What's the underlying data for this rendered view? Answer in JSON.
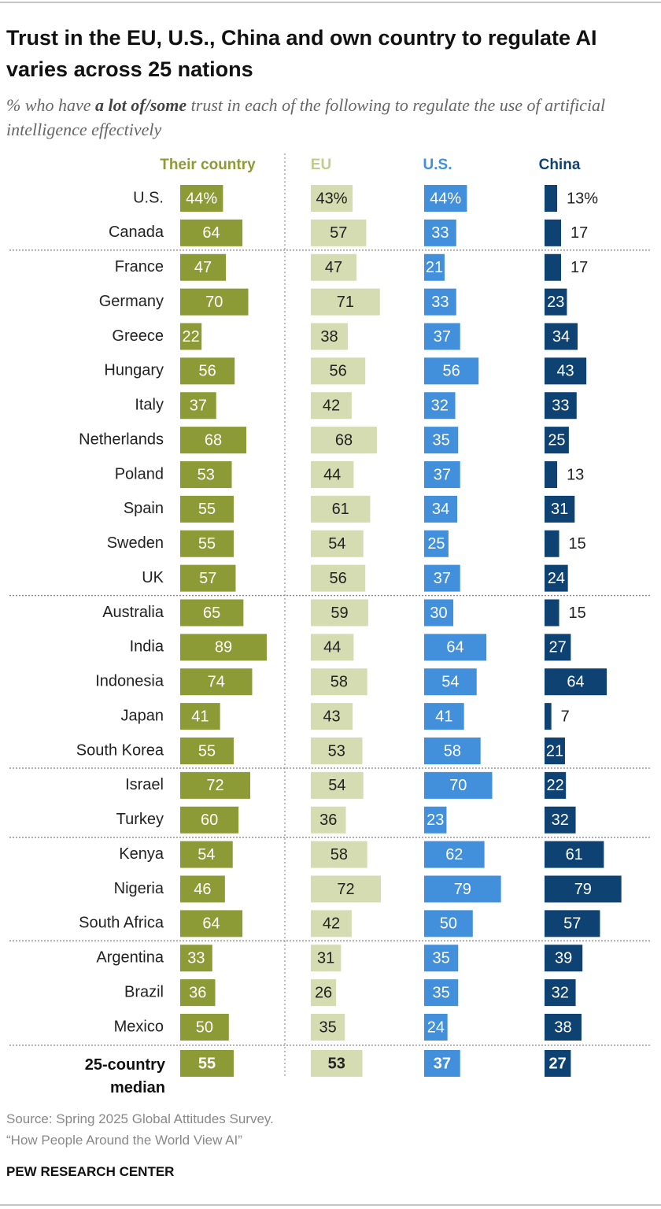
{
  "chart_data": {
    "type": "bar",
    "title": "Trust in the EU, U.S., China and own country to regulate AI varies across 25 nations",
    "subtitle": [
      "% who have ",
      "a lot of/some",
      " trust in each of the following to regulate the use of artificial intelligence effectively"
    ],
    "categories": [
      "U.S.",
      "Canada",
      "France",
      "Germany",
      "Greece",
      "Hungary",
      "Italy",
      "Netherlands",
      "Poland",
      "Spain",
      "Sweden",
      "UK",
      "Australia",
      "India",
      "Indonesia",
      "Japan",
      "South Korea",
      "Israel",
      "Turkey",
      "Kenya",
      "Nigeria",
      "South Africa",
      "Argentina",
      "Brazil",
      "Mexico",
      "25-country median"
    ],
    "series": [
      {
        "name": "Their country",
        "color": "#8c9b35",
        "label_color": "#ffffff",
        "values": [
          44,
          64,
          47,
          70,
          22,
          56,
          37,
          68,
          53,
          55,
          55,
          57,
          65,
          89,
          74,
          41,
          55,
          72,
          60,
          54,
          46,
          64,
          33,
          36,
          50,
          55
        ],
        "value_labels": [
          "44%",
          "64",
          "47",
          "70",
          "22",
          "56",
          "37",
          "68",
          "53",
          "55",
          "55",
          "57",
          "65",
          "89",
          "74",
          "41",
          "55",
          "72",
          "60",
          "54",
          "46",
          "64",
          "33",
          "36",
          "50",
          "55"
        ]
      },
      {
        "name": "EU",
        "color": "#d5dcb1",
        "label_color": "#222222",
        "values": [
          43,
          57,
          47,
          71,
          38,
          56,
          42,
          68,
          44,
          61,
          54,
          56,
          59,
          44,
          58,
          43,
          53,
          54,
          36,
          58,
          72,
          42,
          31,
          26,
          35,
          53
        ],
        "value_labels": [
          "43%",
          "57",
          "47",
          "71",
          "38",
          "56",
          "42",
          "68",
          "44",
          "61",
          "54",
          "56",
          "59",
          "44",
          "58",
          "43",
          "53",
          "54",
          "36",
          "58",
          "72",
          "42",
          "31",
          "26",
          "35",
          "53"
        ]
      },
      {
        "name": "U.S.",
        "color": "#4290dc",
        "label_color": "#ffffff",
        "values": [
          44,
          33,
          21,
          33,
          37,
          56,
          32,
          35,
          37,
          34,
          25,
          37,
          30,
          64,
          54,
          41,
          58,
          70,
          23,
          62,
          79,
          50,
          35,
          35,
          24,
          37
        ],
        "value_labels": [
          "44%",
          "33",
          "21",
          "33",
          "37",
          "56",
          "32",
          "35",
          "37",
          "34",
          "25",
          "37",
          "30",
          "64",
          "54",
          "41",
          "58",
          "70",
          "23",
          "62",
          "79",
          "50",
          "35",
          "35",
          "24",
          "37"
        ]
      },
      {
        "name": "China",
        "color": "#0d4273",
        "label_color": "#ffffff",
        "values": [
          13,
          17,
          17,
          23,
          34,
          43,
          33,
          25,
          13,
          31,
          15,
          24,
          15,
          27,
          64,
          7,
          21,
          22,
          32,
          61,
          79,
          57,
          39,
          32,
          38,
          27
        ],
        "value_labels": [
          "13%",
          "17",
          "17",
          "23",
          "34",
          "43",
          "33",
          "25",
          "13",
          "31",
          "15",
          "24",
          "15",
          "27",
          "64",
          "7",
          "21",
          "22",
          "32",
          "61",
          "79",
          "57",
          "39",
          "32",
          "38",
          "27"
        ]
      }
    ],
    "source": "Source: Spring 2025 Global Attitudes Survey.",
    "note": "“How People Around the World View AI”",
    "footer": "PEW RESEARCH CENTER"
  }
}
